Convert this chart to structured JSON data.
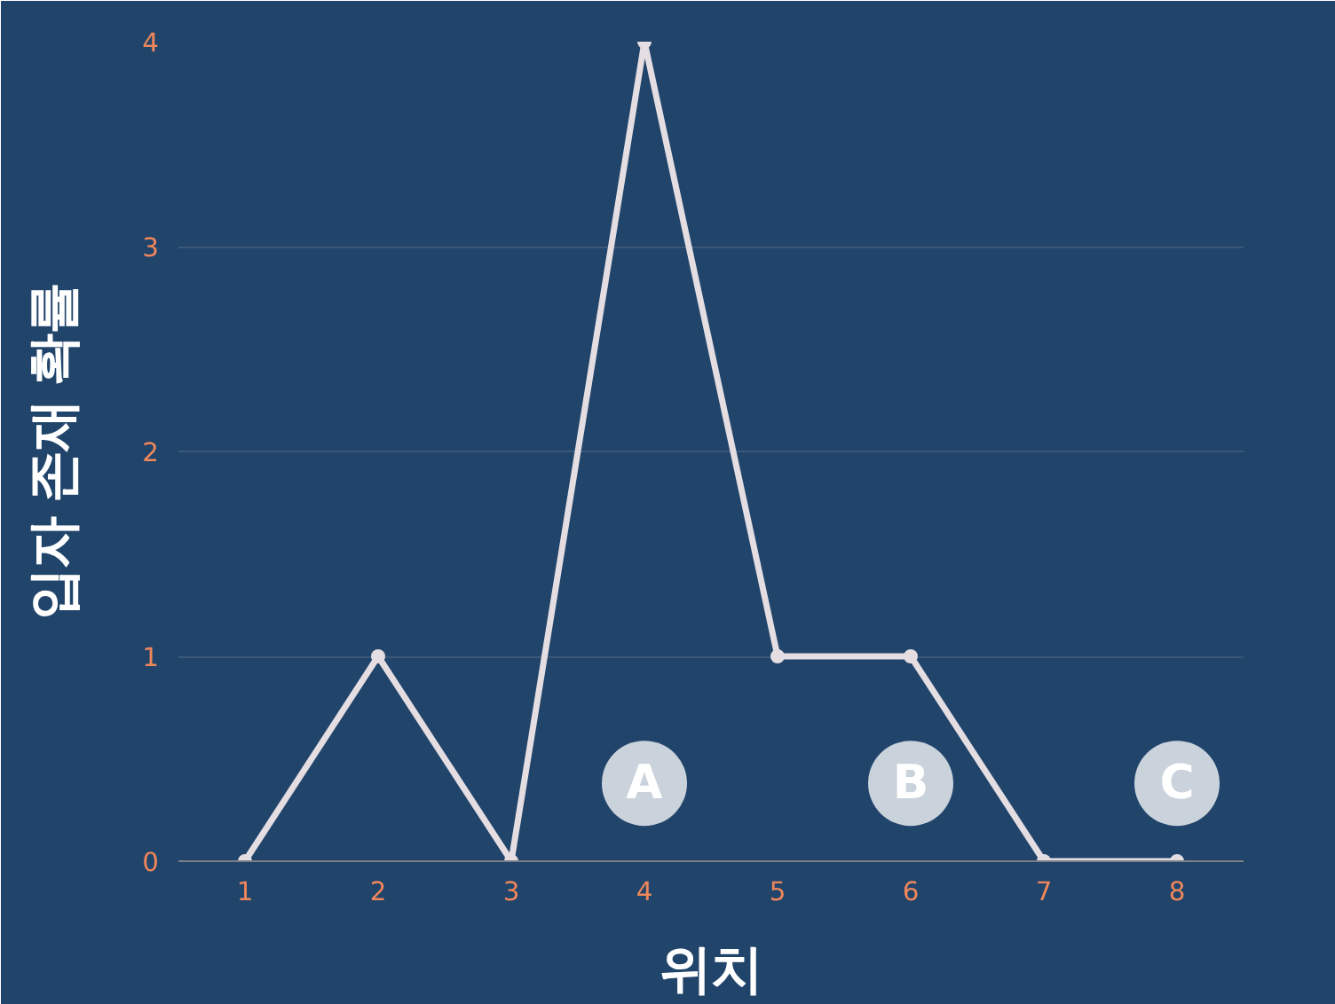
{
  "chart_data": {
    "type": "line",
    "xlabel": "위치",
    "ylabel": "입자 존재 확률",
    "x": [
      1,
      2,
      3,
      4,
      5,
      6,
      7,
      8
    ],
    "series": [
      {
        "color": "#e4dde1",
        "values": [
          0,
          1,
          0,
          4,
          1,
          1,
          0,
          0
        ]
      }
    ],
    "xlim": [
      0.5,
      8.5
    ],
    "xticks": [
      1,
      2,
      3,
      4,
      5,
      6,
      7,
      8
    ],
    "ylim": [
      0,
      4
    ],
    "yticks": [
      0,
      1,
      2,
      3,
      4
    ],
    "grid": "y",
    "marker": "circle",
    "line_style": "solid",
    "annotations": [
      "A",
      "B",
      "C"
    ]
  }
}
